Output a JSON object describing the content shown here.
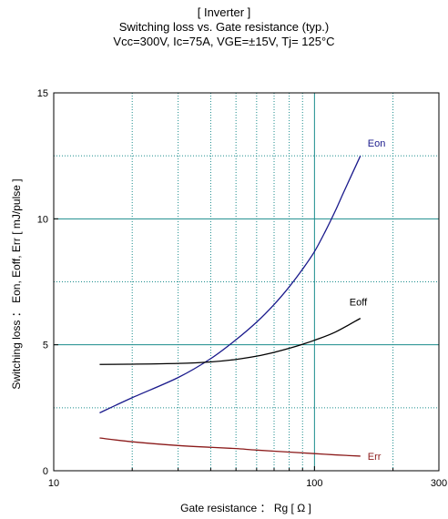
{
  "header": {
    "line1": "[ Inverter ]",
    "line2": "Switching loss  vs.  Gate resistance (typ.)",
    "line3": "Vcc=300V, Ic=75A, VGE=±15V, Tj= 125°C"
  },
  "colors": {
    "eon": "#1a1a8c",
    "eoff": "#000000",
    "err": "#8b1a1a",
    "grid": "#1a8c8c",
    "frame": "#000000"
  },
  "chart_data": {
    "type": "line",
    "x_scale": "log",
    "xlabel": "Gate resistance ： Rg [ Ω ]",
    "ylabel": "Switching loss ： Eon, Eoff, Err  [ mJ/pulse ]",
    "xlim": [
      10,
      300
    ],
    "ylim": [
      0,
      15
    ],
    "x_ticks": [
      10,
      100,
      300
    ],
    "x_tick_labels": [
      "10",
      "100",
      "300"
    ],
    "y_ticks": [
      0,
      5,
      10,
      15
    ],
    "y_tick_labels": [
      "0",
      "5",
      "10",
      "15"
    ],
    "grid": true,
    "series": [
      {
        "name": "Eon",
        "color": "#1a1a8c",
        "x": [
          15,
          20,
          30,
          40,
          50,
          60,
          70,
          80,
          90,
          100,
          110,
          120,
          130,
          150
        ],
        "y": [
          2.3,
          2.9,
          3.7,
          4.45,
          5.2,
          5.9,
          6.6,
          7.3,
          8.0,
          8.7,
          9.5,
          10.3,
          11.1,
          12.5
        ]
      },
      {
        "name": "Eoff",
        "color": "#000000",
        "x": [
          15,
          20,
          30,
          40,
          50,
          60,
          70,
          80,
          90,
          100,
          120,
          150
        ],
        "y": [
          4.22,
          4.23,
          4.26,
          4.32,
          4.42,
          4.55,
          4.7,
          4.86,
          5.02,
          5.18,
          5.5,
          6.05
        ]
      },
      {
        "name": "Err",
        "color": "#8b1a1a",
        "x": [
          15,
          20,
          30,
          40,
          50,
          60,
          80,
          100,
          120,
          150
        ],
        "y": [
          1.3,
          1.15,
          1.0,
          0.93,
          0.88,
          0.82,
          0.74,
          0.68,
          0.63,
          0.58
        ]
      }
    ]
  }
}
